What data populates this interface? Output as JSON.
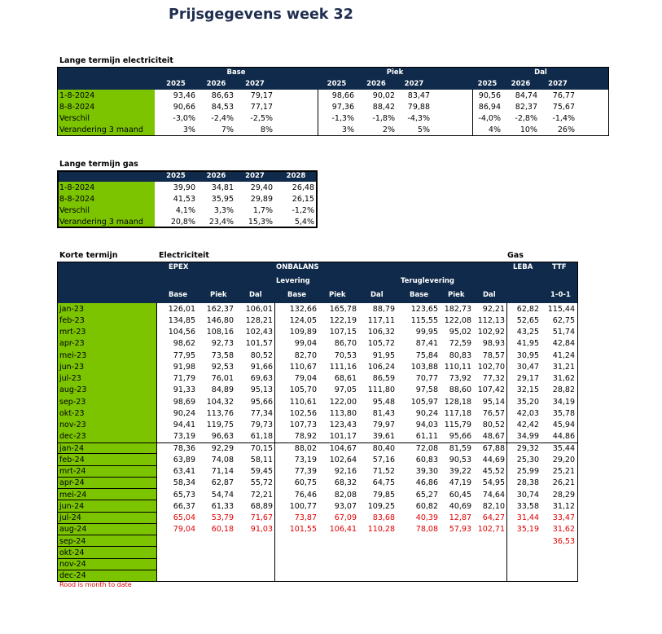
{
  "title": "Prijsgegevens week 32",
  "colors": {
    "title": "#1f2d4f",
    "header": "#0f2a4a",
    "label": "#7cc400",
    "month_to_date": "#e00000"
  },
  "long_term_electricity": {
    "heading": "Lange termijn electriciteit",
    "groups": [
      "Base",
      "Piek",
      "Dal"
    ],
    "years": [
      "2025",
      "2026",
      "2027"
    ],
    "rows": [
      {
        "label": "1-8-2024",
        "values": [
          "93,46",
          "86,63",
          "79,17",
          "98,66",
          "90,02",
          "83,47",
          "90,56",
          "84,74",
          "76,77"
        ]
      },
      {
        "label": "8-8-2024",
        "values": [
          "90,66",
          "84,53",
          "77,17",
          "97,36",
          "88,42",
          "79,88",
          "86,94",
          "82,37",
          "75,67"
        ]
      },
      {
        "label": "Verschil",
        "values": [
          "-3,0%",
          "-2,4%",
          "-2,5%",
          "-1,3%",
          "-1,8%",
          "-4,3%",
          "-4,0%",
          "-2,8%",
          "-1,4%"
        ]
      },
      {
        "label": "Verandering 3 maand",
        "values": [
          "3%",
          "7%",
          "8%",
          "3%",
          "2%",
          "5%",
          "4%",
          "10%",
          "26%"
        ]
      }
    ]
  },
  "long_term_gas": {
    "heading": "Lange termijn gas",
    "years": [
      "2025",
      "2026",
      "2027",
      "2028"
    ],
    "rows": [
      {
        "label": "1-8-2024",
        "values": [
          "39,90",
          "34,81",
          "29,40",
          "26,48"
        ]
      },
      {
        "label": "8-8-2024",
        "values": [
          "41,53",
          "35,95",
          "29,89",
          "26,15"
        ]
      },
      {
        "label": "Verschil",
        "values": [
          "4,1%",
          "3,3%",
          "1,7%",
          "-1,2%"
        ]
      },
      {
        "label": "Verandering 3 maand",
        "values": [
          "20,8%",
          "23,4%",
          "15,3%",
          "5,4%"
        ]
      }
    ]
  },
  "short_term": {
    "heading": "Korte termijn",
    "electricity_heading": "Electriciteit",
    "gas_heading": "Gas",
    "headers": {
      "epex": "EPEX",
      "onbalans": "ONBALANS",
      "levering": "Levering",
      "teruglevering": "Teruglevering",
      "leba": "LEBA",
      "ttf": "TTF",
      "ttf_contract": "1-0-1"
    },
    "subheaders": [
      "Base",
      "Piek",
      "Dal",
      "Base",
      "Piek",
      "Dal",
      "Base",
      "Piek",
      "Dal"
    ],
    "row_groups": [
      {
        "rows": [
          {
            "label": "jan-23",
            "values": [
              "126,01",
              "162,37",
              "106,01",
              "132,66",
              "165,78",
              "88,79",
              "123,65",
              "182,73",
              "92,21",
              "62,82",
              "115,44"
            ]
          },
          {
            "label": "feb-23",
            "values": [
              "134,85",
              "146,80",
              "128,21",
              "124,05",
              "122,19",
              "117,11",
              "115,55",
              "122,08",
              "112,13",
              "52,65",
              "62,75"
            ]
          },
          {
            "label": "mrt-23",
            "values": [
              "104,56",
              "108,16",
              "102,43",
              "109,89",
              "107,15",
              "106,32",
              "99,95",
              "95,02",
              "102,92",
              "43,25",
              "51,74"
            ]
          },
          {
            "label": "apr-23",
            "values": [
              "98,62",
              "92,73",
              "101,57",
              "99,04",
              "86,70",
              "105,72",
              "87,41",
              "72,59",
              "98,93",
              "41,95",
              "42,84"
            ]
          },
          {
            "label": "mei-23",
            "values": [
              "77,95",
              "73,58",
              "80,52",
              "82,70",
              "70,53",
              "91,95",
              "75,84",
              "80,83",
              "78,57",
              "30,95",
              "41,24"
            ]
          },
          {
            "label": "jun-23",
            "values": [
              "91,98",
              "92,53",
              "91,66",
              "110,67",
              "111,16",
              "106,24",
              "103,88",
              "110,11",
              "102,70",
              "30,47",
              "31,21"
            ]
          },
          {
            "label": "jul-23",
            "values": [
              "71,79",
              "76,01",
              "69,63",
              "79,04",
              "68,61",
              "86,59",
              "70,77",
              "73,92",
              "77,32",
              "29,17",
              "31,62"
            ]
          },
          {
            "label": "aug-23",
            "values": [
              "91,33",
              "84,89",
              "95,13",
              "105,70",
              "97,05",
              "111,80",
              "97,58",
              "88,60",
              "107,42",
              "32,15",
              "28,82"
            ]
          },
          {
            "label": "sep-23",
            "values": [
              "98,69",
              "104,32",
              "95,66",
              "110,61",
              "122,00",
              "95,48",
              "105,97",
              "128,18",
              "95,14",
              "35,20",
              "34,19"
            ]
          },
          {
            "label": "okt-23",
            "values": [
              "90,24",
              "113,76",
              "77,34",
              "102,56",
              "113,80",
              "81,43",
              "90,24",
              "117,18",
              "76,57",
              "42,03",
              "35,78"
            ]
          },
          {
            "label": "nov-23",
            "values": [
              "94,41",
              "119,75",
              "79,73",
              "107,73",
              "123,43",
              "79,97",
              "94,03",
              "115,79",
              "80,52",
              "42,42",
              "45,94"
            ]
          },
          {
            "label": "dec-23",
            "values": [
              "73,19",
              "96,63",
              "61,18",
              "78,92",
              "101,17",
              "39,61",
              "61,11",
              "95,66",
              "48,67",
              "34,99",
              "44,86"
            ]
          }
        ]
      },
      {
        "rows": [
          {
            "label": "jan-24",
            "values": [
              "78,36",
              "92,29",
              "70,15",
              "88,02",
              "104,67",
              "80,40",
              "72,08",
              "81,59",
              "67,88",
              "29,32",
              "35,44"
            ]
          },
          {
            "label": "feb-24",
            "values": [
              "63,89",
              "74,08",
              "58,11",
              "73,19",
              "102,64",
              "57,16",
              "60,83",
              "90,53",
              "44,69",
              "25,30",
              "29,20"
            ]
          },
          {
            "label": "mrt-24",
            "values": [
              "63,41",
              "71,14",
              "59,45",
              "77,39",
              "92,16",
              "71,52",
              "39,30",
              "39,22",
              "45,52",
              "25,99",
              "25,21"
            ]
          },
          {
            "label": "apr-24",
            "values": [
              "58,34",
              "62,87",
              "55,72",
              "60,75",
              "68,32",
              "64,75",
              "46,86",
              "47,19",
              "54,95",
              "28,38",
              "26,21"
            ]
          },
          {
            "label": "mei-24",
            "values": [
              "65,73",
              "54,74",
              "72,21",
              "76,46",
              "82,08",
              "79,85",
              "65,27",
              "60,45",
              "74,64",
              "30,74",
              "28,29"
            ]
          },
          {
            "label": "jun-24",
            "values": [
              "66,37",
              "61,33",
              "68,89",
              "100,77",
              "93,07",
              "109,25",
              "60,82",
              "40,69",
              "82,10",
              "33,58",
              "31,12"
            ]
          },
          {
            "label": "jul-24",
            "month_to_date": true,
            "values": [
              "65,04",
              "53,79",
              "71,67",
              "73,87",
              "67,09",
              "83,68",
              "40,39",
              "12,87",
              "64,27",
              "31,44",
              "33,47"
            ]
          },
          {
            "label": "aug-24",
            "month_to_date": true,
            "values": [
              "79,04",
              "60,18",
              "91,03",
              "101,55",
              "106,41",
              "110,28",
              "78,08",
              "57,93",
              "102,71",
              "35,19",
              "31,62"
            ]
          },
          {
            "label": "sep-24",
            "month_to_date": true,
            "values": [
              "",
              "",
              "",
              "",
              "",
              "",
              "",
              "",
              "",
              "",
              "36,53"
            ]
          },
          {
            "label": "okt-24",
            "values": []
          },
          {
            "label": "nov-24",
            "values": []
          },
          {
            "label": "dec-24",
            "values": []
          }
        ]
      }
    ]
  },
  "note": "Rood is month to date"
}
